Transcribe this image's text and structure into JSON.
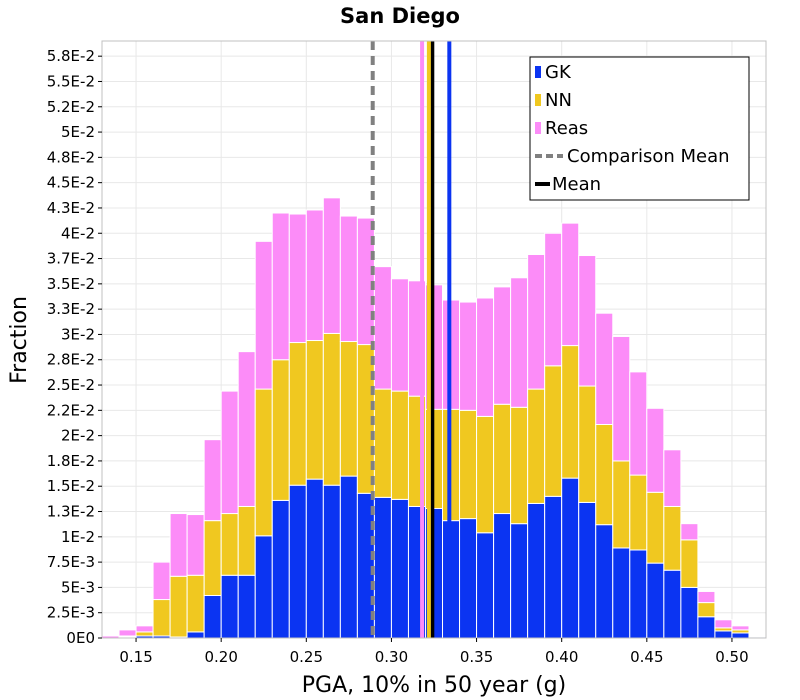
{
  "chart_data": {
    "type": "bar",
    "stacked": true,
    "title": "San Diego",
    "xlabel": "PGA, 10% in 50 year (g)",
    "ylabel": "Fraction",
    "xlim": [
      0.13,
      0.52
    ],
    "ylim": [
      0,
      0.059
    ],
    "bin_width": 0.01,
    "xticks": [
      0.15,
      0.2,
      0.25,
      0.3,
      0.35,
      0.4,
      0.45,
      0.5
    ],
    "xtick_labels": [
      "0.15",
      "0.20",
      "0.25",
      "0.30",
      "0.35",
      "0.40",
      "0.45",
      "0.50"
    ],
    "yticks": [
      0,
      0.0025,
      0.005,
      0.0075,
      0.01,
      0.0125,
      0.015,
      0.0175,
      0.02,
      0.0225,
      0.025,
      0.0275,
      0.03,
      0.0325,
      0.035,
      0.0375,
      0.04,
      0.0425,
      0.045,
      0.0475,
      0.05,
      0.0525,
      0.055,
      0.0575
    ],
    "ytick_labels": [
      "0E0",
      "2.5E-3",
      "5E-3",
      "7.5E-3",
      "1E-2",
      "1.3E-2",
      "1.5E-2",
      "1.8E-2",
      "2E-2",
      "2.2E-2",
      "2.5E-2",
      "2.8E-2",
      "3E-2",
      "3.3E-2",
      "3.5E-2",
      "3.7E-2",
      "4E-2",
      "4.3E-2",
      "4.5E-2",
      "4.8E-2",
      "5E-2",
      "5.2E-2",
      "5.5E-2",
      "5.8E-2"
    ],
    "grid": true,
    "legend_position": "top-right",
    "bin_centers": [
      0.135,
      0.145,
      0.155,
      0.165,
      0.175,
      0.185,
      0.195,
      0.205,
      0.215,
      0.225,
      0.235,
      0.245,
      0.255,
      0.265,
      0.275,
      0.285,
      0.295,
      0.305,
      0.315,
      0.325,
      0.335,
      0.345,
      0.355,
      0.365,
      0.375,
      0.385,
      0.395,
      0.405,
      0.415,
      0.425,
      0.435,
      0.445,
      0.455,
      0.465,
      0.475,
      0.485,
      0.495,
      0.505,
      0.515
    ],
    "series": [
      {
        "name": "GK",
        "color": "#0b34f2",
        "values": [
          0.0,
          0.0001,
          0.0002,
          0.0002,
          0.0001,
          0.0006,
          0.0042,
          0.0062,
          0.0062,
          0.0101,
          0.0136,
          0.0151,
          0.0157,
          0.0151,
          0.016,
          0.0143,
          0.0139,
          0.0137,
          0.013,
          0.0128,
          0.0116,
          0.0118,
          0.0104,
          0.0123,
          0.0113,
          0.0133,
          0.014,
          0.0158,
          0.0134,
          0.0112,
          0.0089,
          0.0087,
          0.0074,
          0.0067,
          0.005,
          0.0021,
          0.0007,
          0.0005,
          0.0001
        ]
      },
      {
        "name": "NN",
        "color": "#f0c820",
        "values": [
          0.0,
          0.0001,
          0.0004,
          0.0036,
          0.006,
          0.0056,
          0.0074,
          0.0061,
          0.0068,
          0.0145,
          0.0139,
          0.0141,
          0.0137,
          0.015,
          0.0133,
          0.0147,
          0.0107,
          0.0107,
          0.0109,
          0.0098,
          0.011,
          0.0107,
          0.0115,
          0.0108,
          0.0115,
          0.0113,
          0.0129,
          0.0131,
          0.0115,
          0.0099,
          0.0086,
          0.0074,
          0.007,
          0.0063,
          0.0047,
          0.0014,
          0.0003,
          0.0003,
          0.0
        ]
      },
      {
        "name": "Reas",
        "color": "#fc8cf8",
        "values": [
          0.0002,
          0.0006,
          0.0006,
          0.0037,
          0.0062,
          0.006,
          0.008,
          0.0121,
          0.0153,
          0.0146,
          0.0145,
          0.0127,
          0.0129,
          0.0134,
          0.0124,
          0.0125,
          0.0121,
          0.0111,
          0.0114,
          0.0123,
          0.0108,
          0.0107,
          0.0117,
          0.0116,
          0.0128,
          0.0133,
          0.0131,
          0.0121,
          0.0129,
          0.011,
          0.0123,
          0.0102,
          0.0083,
          0.0056,
          0.0016,
          0.0011,
          0.0008,
          0.0004,
          0.0
        ]
      }
    ],
    "vertical_lines": [
      {
        "name": "Comparison Mean",
        "x": 0.289,
        "color": "#808080",
        "style": "dashed"
      },
      {
        "name": "Mean",
        "x": 0.324,
        "color": "#000000",
        "style": "solid"
      },
      {
        "name": "",
        "x": 0.334,
        "color": "#0b34f2",
        "style": "solid"
      },
      {
        "name": "",
        "x": 0.322,
        "color": "#f0c820",
        "style": "solid"
      },
      {
        "name": "",
        "x": 0.318,
        "color": "#fc8cf8",
        "style": "solid"
      }
    ],
    "legend": [
      {
        "label": "GK",
        "kind": "box",
        "color": "#0b34f2"
      },
      {
        "label": "NN",
        "kind": "box",
        "color": "#f0c820"
      },
      {
        "label": "Reas",
        "kind": "box",
        "color": "#fc8cf8"
      },
      {
        "label": "Comparison Mean",
        "kind": "dashed",
        "color": "#808080"
      },
      {
        "label": "Mean",
        "kind": "line",
        "color": "#000000"
      }
    ]
  }
}
